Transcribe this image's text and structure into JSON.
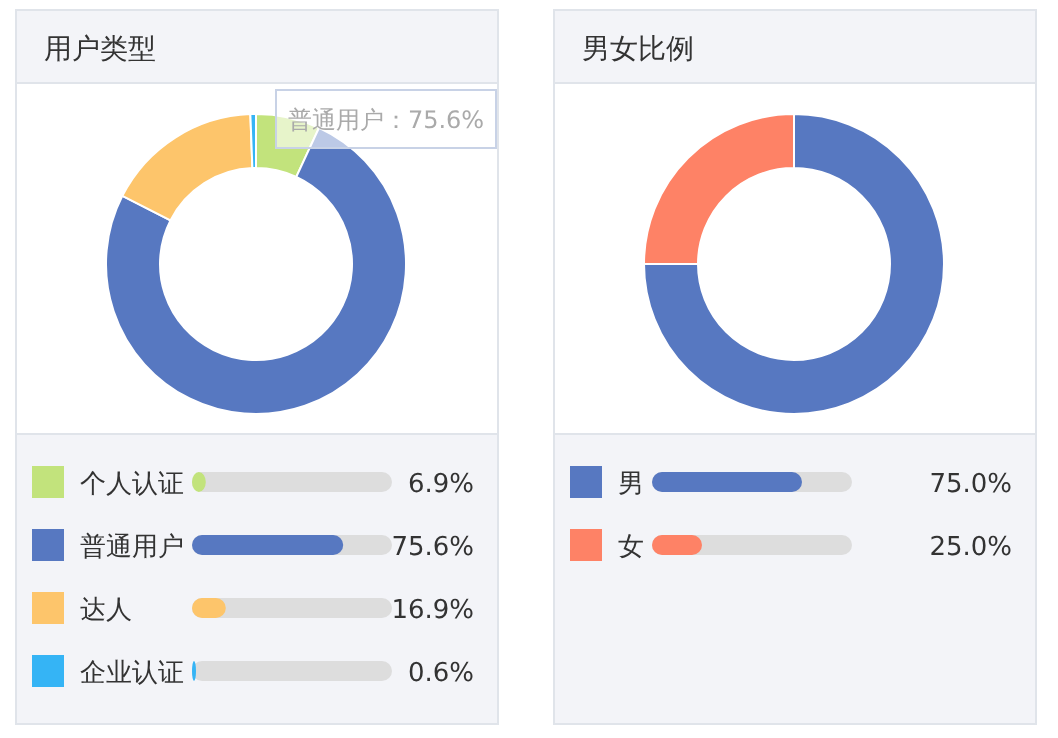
{
  "chart_data": [
    {
      "type": "donut",
      "title": "用户类型",
      "categories": [
        "个人认证",
        "普通用户",
        "达人",
        "企业认证"
      ],
      "values": [
        6.9,
        75.6,
        16.9,
        0.6
      ],
      "value_labels": [
        "6.9%",
        "75.6%",
        "16.9%",
        "0.6%"
      ],
      "colors": [
        "#c2e37c",
        "#5778c1",
        "#fdc56b",
        "#35b4f5"
      ],
      "legend": "bottom",
      "annotations": [
        "普通用户：75.6%"
      ]
    },
    {
      "type": "donut",
      "title": "男女比例",
      "categories": [
        "男",
        "女"
      ],
      "values": [
        75.0,
        25.0
      ],
      "value_labels": [
        "75.0%",
        "25.0%"
      ],
      "colors": [
        "#5778c1",
        "#fe8266"
      ],
      "legend": "bottom"
    }
  ]
}
